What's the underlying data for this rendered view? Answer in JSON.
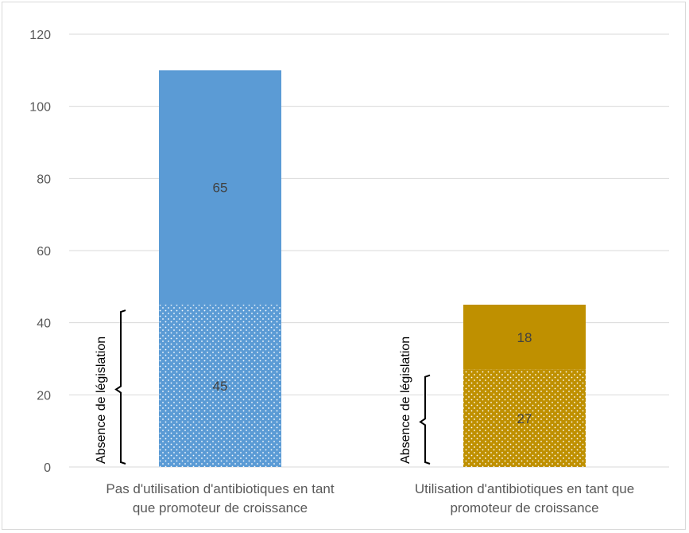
{
  "chart_data": {
    "type": "bar",
    "stacked": true,
    "categories": [
      [
        "Pas d'utilisation d'antibiotiques en tant",
        "que promoteur de croissance"
      ],
      [
        "Utilisation d'antibiotiques en tant que",
        "promoteur de croissance"
      ]
    ],
    "series": [
      {
        "values": [
          45,
          27
        ],
        "pattern": "dotted",
        "colors": [
          "#5b9bd5",
          "#bf9000"
        ]
      },
      {
        "values": [
          65,
          18
        ],
        "pattern": "solid",
        "colors": [
          "#5b9bd5",
          "#bf9000"
        ]
      }
    ],
    "annotations": [
      {
        "text": "Absence de législation",
        "category": 0,
        "brace_range": [
          0,
          43
        ]
      },
      {
        "text": "Absence de législation",
        "category": 1,
        "brace_range": [
          0,
          25
        ]
      }
    ],
    "ylim": [
      0,
      120
    ],
    "yticks": [
      0,
      20,
      40,
      60,
      80,
      100,
      120
    ],
    "grid": true,
    "legend": "none",
    "title": "",
    "xlabel": "",
    "ylabel": ""
  }
}
